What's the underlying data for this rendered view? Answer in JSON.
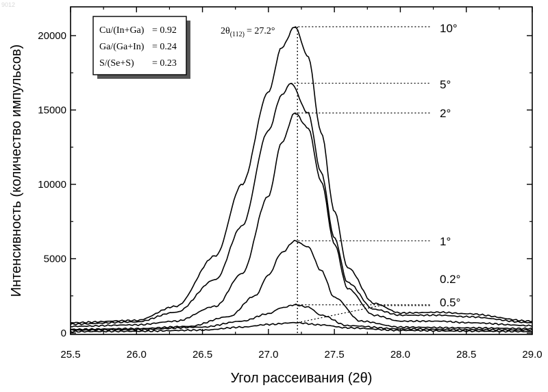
{
  "watermark": "9012",
  "chart_data": {
    "type": "line",
    "xlabel": "Угол рассеивания (2θ)",
    "ylabel": "Интенсивность (количество импульсов)",
    "xlim": [
      25.5,
      29.0
    ],
    "ylim": [
      0,
      21000
    ],
    "xticks": [
      "25.5",
      "26.0",
      "26.5",
      "27.0",
      "27.5",
      "28.0",
      "28.5",
      "29.0"
    ],
    "yticks": [
      "0",
      "5000",
      "10000",
      "15000",
      "20000"
    ],
    "grid": false,
    "annotations": {
      "composition": [
        {
          "label": "Cu/(In+Ga)",
          "value": "= 0.92"
        },
        {
          "label": "Ga/(Ga+In)",
          "value": "= 0.24"
        },
        {
          "label": "S/(Se+S)",
          "value": "= 0.23"
        }
      ],
      "peak_label_main": "2θ",
      "peak_label_sub": "(112)",
      "peak_label_value": "= 27.2°",
      "peak_position": 27.22
    },
    "series": [
      {
        "name": "10°",
        "peak": 20600,
        "sigma": 0.28,
        "center": 27.2,
        "x": [
          25.5,
          26.0,
          26.3,
          26.6,
          26.8,
          27.0,
          27.1,
          27.2,
          27.3,
          27.4,
          27.5,
          27.6,
          27.8,
          28.0,
          28.3,
          28.5,
          29.0
        ],
        "y": [
          700,
          850,
          1800,
          5200,
          10000,
          16200,
          19200,
          20600,
          18600,
          13500,
          8200,
          4400,
          2000,
          1350,
          1400,
          1300,
          800
        ]
      },
      {
        "name": "5°",
        "peak": 16800,
        "sigma": 0.27,
        "center": 27.17,
        "x": [
          25.5,
          26.0,
          26.3,
          26.6,
          26.8,
          27.0,
          27.1,
          27.17,
          27.3,
          27.4,
          27.5,
          27.6,
          27.8,
          28.0,
          28.3,
          28.5,
          29.0
        ],
        "y": [
          600,
          750,
          1400,
          3600,
          7200,
          13600,
          16000,
          16800,
          14800,
          10800,
          6400,
          3400,
          1600,
          1200,
          1200,
          1100,
          700
        ]
      },
      {
        "name": "2°",
        "peak": 14800,
        "sigma": 0.25,
        "center": 27.2,
        "x": [
          25.5,
          26.0,
          26.3,
          26.6,
          26.8,
          27.0,
          27.1,
          27.2,
          27.3,
          27.4,
          27.5,
          27.6,
          27.8,
          28.0,
          28.3,
          28.5,
          29.0
        ],
        "y": [
          450,
          550,
          800,
          1800,
          4000,
          9200,
          12800,
          14800,
          13800,
          10200,
          6000,
          3000,
          1200,
          800,
          800,
          700,
          500
        ]
      },
      {
        "name": "1°",
        "peak": 6200,
        "sigma": 0.22,
        "center": 27.2,
        "x": [
          25.5,
          26.0,
          26.4,
          26.7,
          26.9,
          27.0,
          27.1,
          27.2,
          27.3,
          27.4,
          27.5,
          27.7,
          28.0,
          28.5,
          29.0
        ],
        "y": [
          250,
          300,
          450,
          1100,
          2500,
          3900,
          5400,
          6200,
          5800,
          4200,
          2400,
          800,
          400,
          350,
          300
        ]
      },
      {
        "name": "0.2°",
        "peak": 700,
        "sigma": 0.3,
        "center": 27.2,
        "x": [
          25.5,
          26.0,
          26.5,
          26.8,
          27.0,
          27.2,
          27.4,
          27.6,
          28.0,
          28.5,
          29.0
        ],
        "y": [
          100,
          120,
          200,
          400,
          580,
          700,
          550,
          350,
          180,
          130,
          100
        ]
      },
      {
        "name": "0.5°",
        "peak": 1900,
        "sigma": 0.24,
        "center": 27.2,
        "x": [
          25.5,
          26.0,
          26.5,
          26.8,
          27.0,
          27.1,
          27.2,
          27.3,
          27.4,
          27.6,
          28.0,
          28.5,
          29.0
        ],
        "y": [
          200,
          230,
          400,
          800,
          1300,
          1700,
          1900,
          1750,
          1200,
          500,
          280,
          230,
          200
        ]
      }
    ],
    "leader_lines": [
      {
        "series": "10°",
        "x": 27.2,
        "y": 20600
      },
      {
        "series": "5°",
        "x": 27.17,
        "y": 16800
      },
      {
        "series": "2°",
        "x": 27.2,
        "y": 14800
      },
      {
        "series": "1°",
        "x": 27.2,
        "y": 6200
      },
      {
        "series": "0.2°",
        "from_x": 27.22,
        "from_y": 700,
        "to_x": 27.85,
        "to_y": 1850
      },
      {
        "series": "0.5°",
        "x": 27.2,
        "y": 1900
      }
    ]
  }
}
